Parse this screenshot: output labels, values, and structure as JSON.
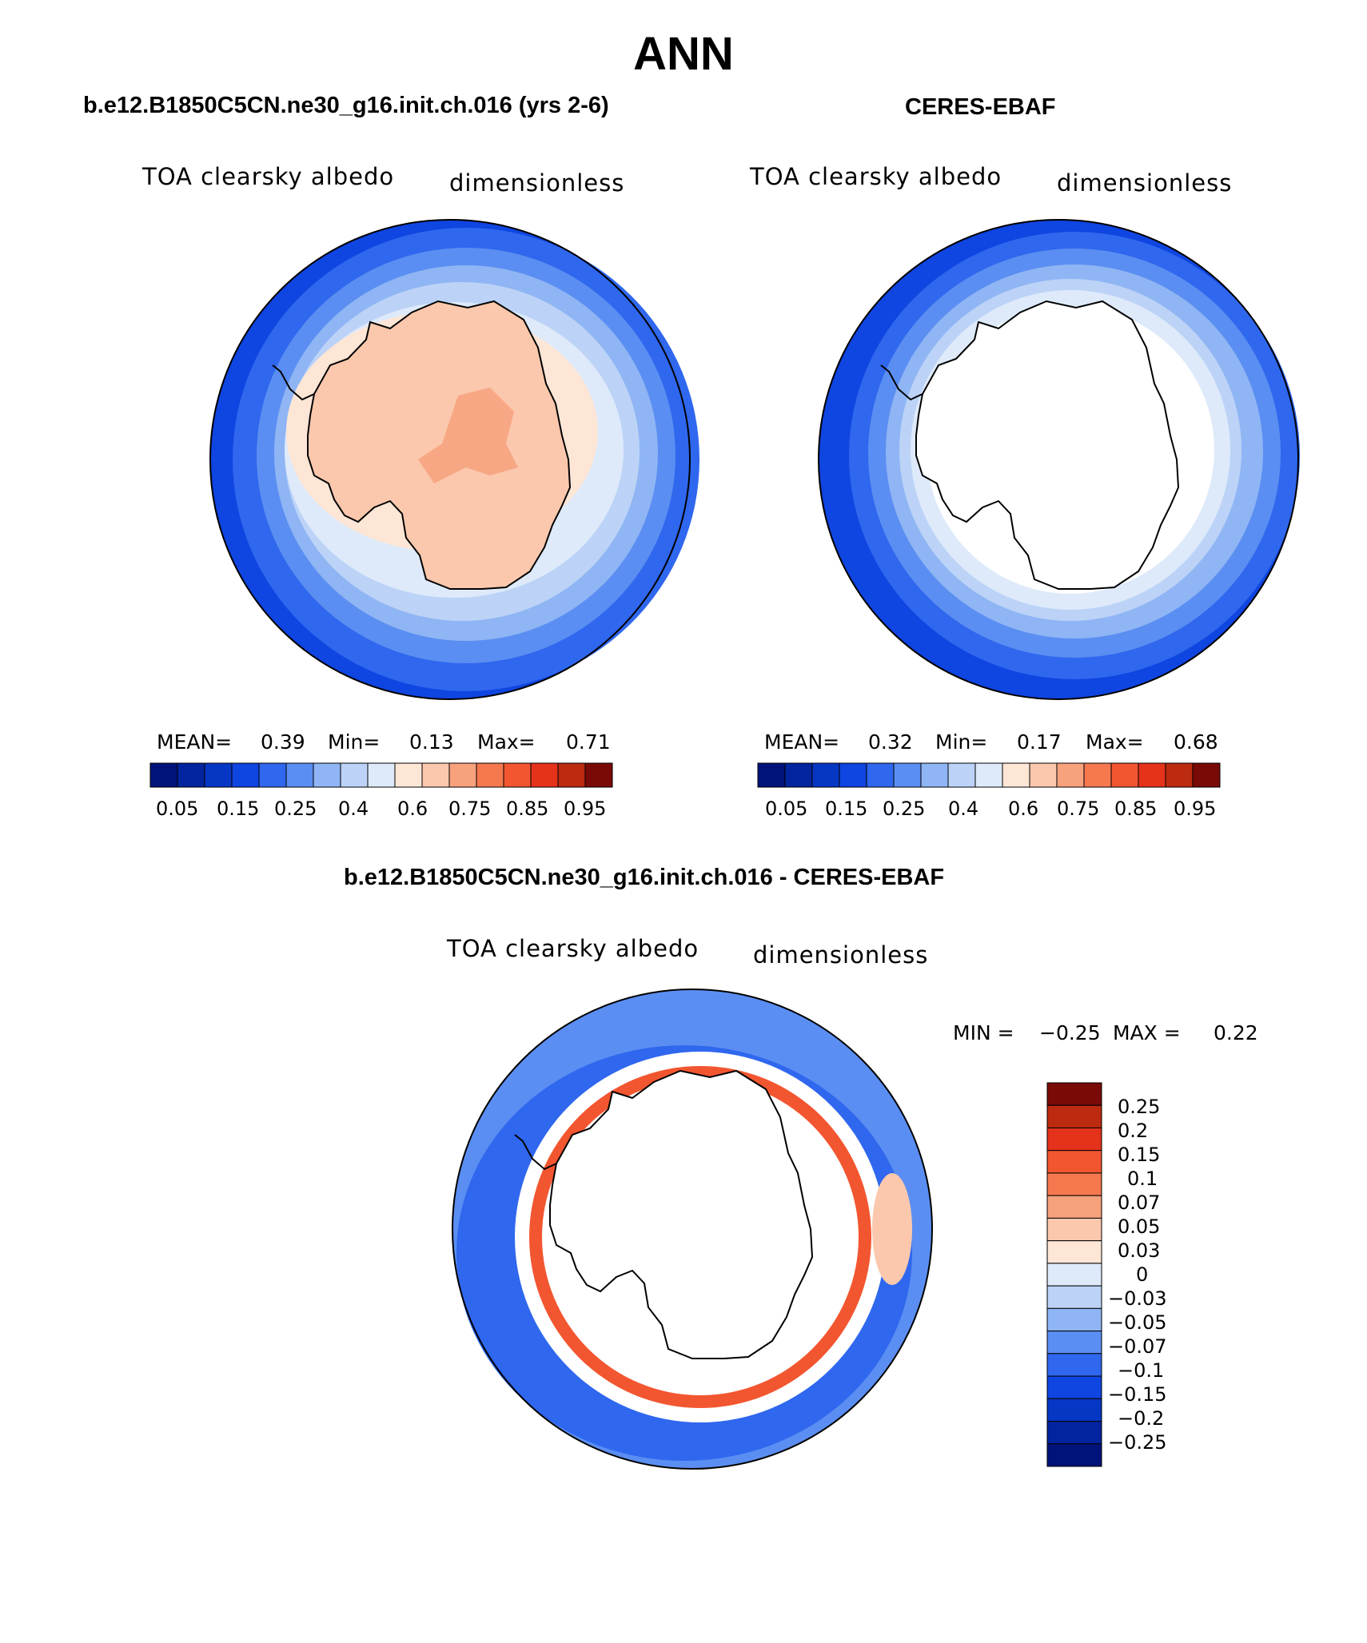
{
  "title": "ANN",
  "colors": {
    "pos": [
      "#fde6d6",
      "#fbc8ad",
      "#f7a17d",
      "#f5784f",
      "#f25630",
      "#e5321b",
      "#bc2a10",
      "#7a0a08"
    ],
    "neg": [
      "#deeafa",
      "#bcd3f7",
      "#8fb5f4",
      "#5b8ef2",
      "#2f67ee",
      "#0f45e0",
      "#0637c4",
      "#02249e",
      "#00137a"
    ],
    "diff": [
      "#00137a",
      "#02249e",
      "#0637c4",
      "#0f45e0",
      "#2f67ee",
      "#5b8ef2",
      "#8fb5f4",
      "#bcd3f7",
      "#deeafa",
      "#fde6d6",
      "#fbc8ad",
      "#f7a17d",
      "#f5784f",
      "#f25630",
      "#e5321b",
      "#bc2a10",
      "#7a0a08"
    ],
    "ocean": "#0f45e0",
    "coast": "#000000"
  },
  "panels": [
    {
      "id": "model",
      "title": "b.e12.B1850C5CN.ne30_g16.init.ch.016 (yrs 2-6)",
      "variable": "TOA clearsky albedo",
      "units": "dimensionless",
      "mean_label": "MEAN=",
      "mean": "0.39",
      "min_label": "Min=",
      "min": "0.13",
      "max_label": "Max=",
      "max": "0.71",
      "colorbar_ticks": [
        "0.05",
        "0.15",
        "0.25",
        "0.4",
        "0.6",
        "0.75",
        "0.85",
        "0.95"
      ]
    },
    {
      "id": "obs",
      "title": "CERES-EBAF",
      "variable": "TOA clearsky albedo",
      "units": "dimensionless",
      "mean_label": "MEAN=",
      "mean": "0.32",
      "min_label": "Min=",
      "min": "0.17",
      "max_label": "Max=",
      "max": "0.68",
      "colorbar_ticks": [
        "0.05",
        "0.15",
        "0.25",
        "0.4",
        "0.6",
        "0.75",
        "0.85",
        "0.95"
      ]
    },
    {
      "id": "diff",
      "title": "b.e12.B1850C5CN.ne30_g16.init.ch.016 - CERES-EBAF",
      "variable": "TOA clearsky albedo",
      "units": "dimensionless",
      "min_label": "MIN =",
      "min": "−0.25",
      "max_label": "MAX =",
      "max": "0.22",
      "colorbar_ticks": [
        "0.25",
        "0.2",
        "0.15",
        "0.1",
        "0.07",
        "0.05",
        "0.03",
        "0",
        "−0.03",
        "−0.05",
        "−0.07",
        "−0.1",
        "−0.15",
        "−0.2",
        "−0.25"
      ]
    }
  ]
}
